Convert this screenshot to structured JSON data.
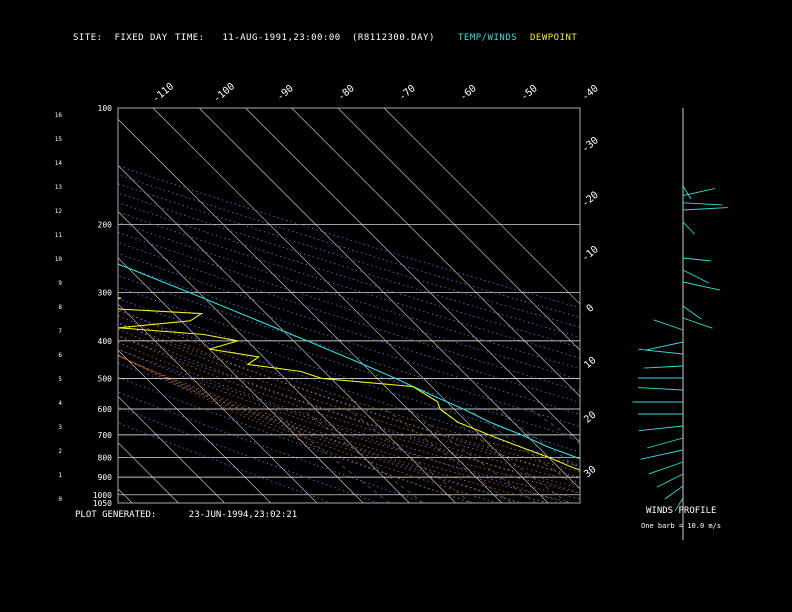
{
  "header": {
    "site_label": "SITE:",
    "site_value": "FIXED DAY",
    "time_label": "TIME:",
    "time_value": "11-AUG-1991,23:00:00",
    "file": "(R8112300.DAY)",
    "legend_temp": "TEMP/WINDS",
    "legend_dew": "DEWPOINT"
  },
  "footer": {
    "generated_label": "PLOT GENERATED:",
    "generated_value": "23-JUN-1994,23:02:21",
    "winds_title": "WINDS PROFILE",
    "barb_note": "One barb = 10.0 m/s"
  },
  "colors": {
    "temp": "#33dddd",
    "dewpoint": "#eeee22",
    "isotherm": "#dddddd",
    "dry_adiabat": "#5577ee",
    "moist_adiabat": "#dd7733",
    "mixing_ratio": "#777777",
    "isobar": "#ffffff"
  },
  "chart_data": {
    "type": "line",
    "title": "",
    "xlabel": "",
    "ylabel": "",
    "pressure_levels": [
      "100",
      "200",
      "300",
      "400",
      "500",
      "600",
      "700",
      "800",
      "900",
      "1000",
      "1050"
    ],
    "height_ticks": [
      "16",
      "15",
      "14",
      "13",
      "12",
      "11",
      "10",
      "9",
      "8",
      "7",
      "6",
      "5",
      "4",
      "3",
      "2",
      "1",
      "0"
    ],
    "isotherm_top_labels": [
      "-110",
      "-100",
      "-90",
      "-80",
      "-70",
      "-60",
      "-50",
      "-40"
    ],
    "isotherm_right_labels": [
      "-30",
      "-20",
      "-10",
      "0",
      "10",
      "20",
      "30"
    ],
    "series": [
      {
        "name": "TEMP/WINDS",
        "pressure": [
          1050,
          1000,
          950,
          900,
          850,
          800,
          750,
          700,
          650,
          600,
          550,
          500,
          450,
          400,
          350,
          300,
          250,
          200,
          170
        ],
        "temp_c": [
          30,
          27,
          24,
          22,
          20,
          16,
          12,
          9,
          5,
          2,
          -2,
          -6,
          -11,
          -17,
          -24,
          -32,
          -42,
          -52,
          -58
        ]
      },
      {
        "name": "DEWPOINT",
        "pressure": [
          1050,
          1000,
          950,
          900,
          850,
          800,
          750,
          700,
          650,
          600,
          575,
          550,
          525,
          500,
          480,
          460,
          440,
          420,
          400,
          385,
          370,
          355,
          340,
          325,
          310,
          300,
          290,
          280,
          270,
          260,
          250,
          240,
          230,
          220,
          210,
          200
        ],
        "dewpoint_c": [
          24,
          22,
          20,
          17,
          13,
          10,
          6,
          2,
          -2,
          -3,
          -2,
          -3,
          -4,
          -22,
          -25,
          -35,
          -31,
          -40,
          -32,
          -38,
          -55,
          -38,
          -34,
          -62,
          -48,
          -60,
          -52,
          -58,
          -52,
          -58,
          -50,
          -56,
          -52,
          -62,
          -60,
          -64
        ]
      }
    ],
    "winds": [
      {
        "h": 0.0,
        "speed": 10,
        "dir": 200
      },
      {
        "h": 0.5,
        "speed": 15,
        "dir": 220
      },
      {
        "h": 1.0,
        "speed": 20,
        "dir": 230
      },
      {
        "h": 1.5,
        "speed": 25,
        "dir": 240
      },
      {
        "h": 2.0,
        "speed": 30,
        "dir": 250
      },
      {
        "h": 2.5,
        "speed": 25,
        "dir": 245
      },
      {
        "h": 3.0,
        "speed": 30,
        "dir": 260
      },
      {
        "h": 3.5,
        "speed": 30,
        "dir": 270
      },
      {
        "h": 4.0,
        "speed": 35,
        "dir": 270
      },
      {
        "h": 4.5,
        "speed": 30,
        "dir": 275
      },
      {
        "h": 5.0,
        "speed": 30,
        "dir": 270
      },
      {
        "h": 5.5,
        "speed": 25,
        "dir": 265
      },
      {
        "h": 6.0,
        "speed": 30,
        "dir": 280
      },
      {
        "h": 6.5,
        "speed": 25,
        "dir": 250
      },
      {
        "h": 7.0,
        "speed": 20,
        "dir": 300
      },
      {
        "h": 7.5,
        "speed": 20,
        "dir": 120
      },
      {
        "h": 8.0,
        "speed": 15,
        "dir": 140
      },
      {
        "h": 9.0,
        "speed": 25,
        "dir": 110
      },
      {
        "h": 9.5,
        "speed": 20,
        "dir": 130
      },
      {
        "h": 10.0,
        "speed": 15,
        "dir": 100
      },
      {
        "h": 11.5,
        "speed": 10,
        "dir": 150
      },
      {
        "h": 12.0,
        "speed": 30,
        "dir": 85
      },
      {
        "h": 12.3,
        "speed": 25,
        "dir": 95
      },
      {
        "h": 12.6,
        "speed": 20,
        "dir": 70
      },
      {
        "h": 13.0,
        "speed": 10,
        "dir": 160
      }
    ]
  }
}
